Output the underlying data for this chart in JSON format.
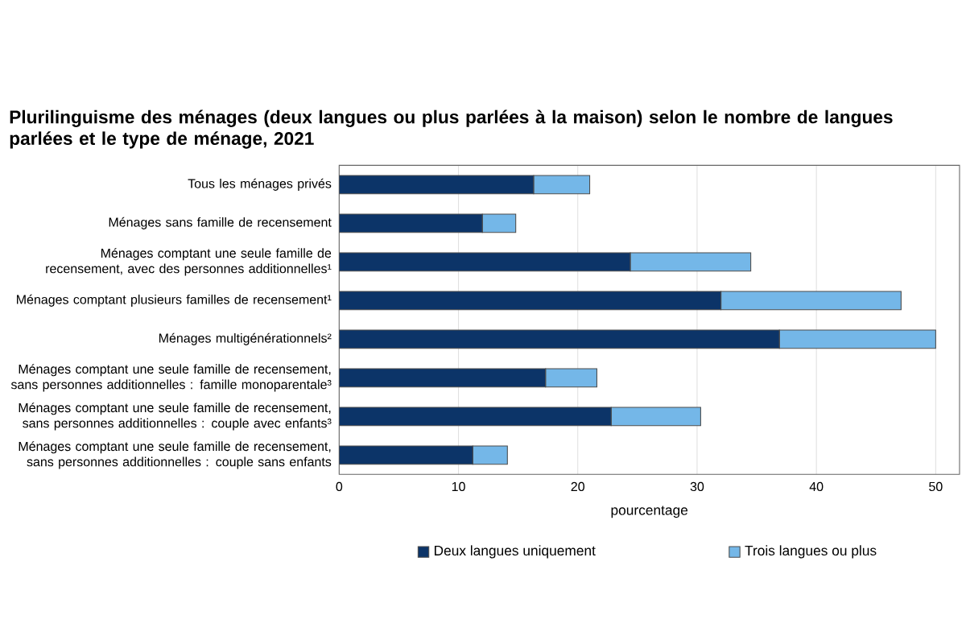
{
  "chart_data": {
    "type": "bar",
    "orientation": "horizontal",
    "stacked": true,
    "title": "Plurilinguisme  des ménages (deux langues ou plus parlées à la maison) selon le nombre de langues parlées et le type de ménage, 2021",
    "xlabel": "pourcentage",
    "categories": [
      "Tous les ménages privés",
      "Ménages sans famille de recensement",
      "Ménages comptant une seule famille de recensement, avec des personnes additionnelles¹",
      "Ménages comptant plusieurs familles de recensement¹",
      "Ménages multigénérationnels²",
      "Ménages comptant une seule famille de recensement, sans personnes additionnelles : famille monoparentale³",
      "Ménages comptant une seule famille de recensement, sans personnes additionnelles : couple avec enfants³",
      "Ménages comptant une seule famille de recensement, sans personnes additionnelles : couple sans enfants"
    ],
    "series": [
      {
        "name": "Deux langues uniquement",
        "color": "#0c3468",
        "values": [
          16.3,
          12.0,
          24.4,
          32.0,
          36.9,
          17.3,
          22.8,
          11.2
        ]
      },
      {
        "name": "Trois langues ou plus",
        "color": "#74b7e8",
        "values": [
          4.7,
          2.8,
          10.1,
          15.1,
          13.1,
          4.3,
          7.5,
          2.9
        ]
      }
    ],
    "xlim": [
      0,
      52
    ],
    "xticks": [
      0,
      10,
      20,
      30,
      40,
      50
    ],
    "grid": "x",
    "legend": "bottom"
  }
}
